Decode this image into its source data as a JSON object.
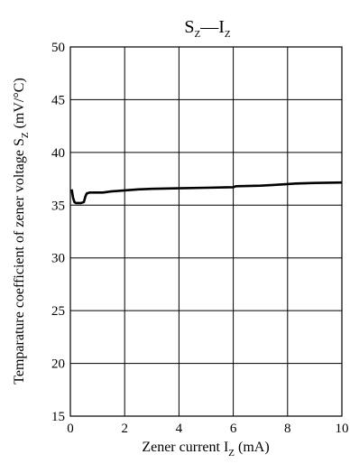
{
  "chart_data": {
    "type": "line",
    "title": {
      "main": "S",
      "main_sub": "Z",
      "sep": "—",
      "second": "I",
      "second_sub": "Z"
    },
    "xlabel": {
      "text": "Zener current  I",
      "sub": "Z",
      "unit": "  (mA)"
    },
    "ylabel": {
      "text": "Temparature coefficient of zener voltage  S",
      "sub": "Z",
      "unit": "  (mV/°C)"
    },
    "xlim": [
      0,
      10
    ],
    "ylim": [
      15,
      50
    ],
    "xticks": [
      "0",
      "2",
      "4",
      "6",
      "8",
      "10"
    ],
    "xtick_values": [
      0,
      2,
      4,
      6,
      8,
      10
    ],
    "yticks": [
      "15",
      "20",
      "25",
      "30",
      "35",
      "40",
      "45",
      "50"
    ],
    "ytick_values": [
      15,
      20,
      25,
      30,
      35,
      40,
      45,
      50
    ],
    "grid": true,
    "series": [
      {
        "x": [
          0.05,
          0.1,
          0.15,
          0.2,
          0.3,
          0.4,
          0.5,
          0.55,
          0.6,
          0.7,
          0.8,
          1.0,
          1.2,
          1.5,
          2.0,
          2.5,
          3.0,
          4.0,
          5.0,
          6.0,
          6.1,
          7.0,
          7.4,
          8.0,
          8.3,
          9.0,
          10.0
        ],
        "y": [
          36.5,
          35.7,
          35.3,
          35.2,
          35.2,
          35.2,
          35.3,
          35.8,
          36.1,
          36.2,
          36.2,
          36.2,
          36.2,
          36.3,
          36.4,
          36.5,
          36.55,
          36.6,
          36.65,
          36.7,
          36.8,
          36.85,
          36.9,
          37.0,
          37.05,
          37.1,
          37.15
        ]
      }
    ]
  }
}
